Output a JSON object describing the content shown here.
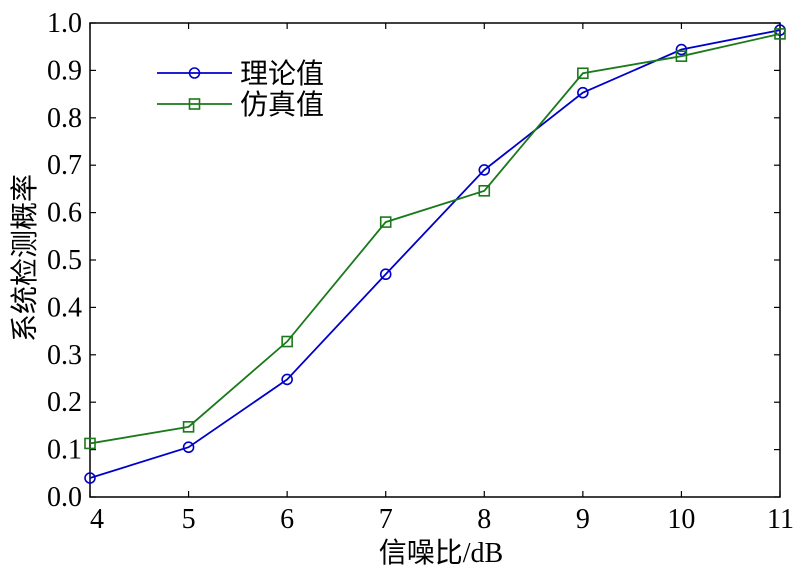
{
  "chart_data": {
    "type": "line",
    "title": "",
    "xlabel": "信噪比/dB",
    "ylabel": "系统检测概率",
    "xlim": [
      4,
      11
    ],
    "ylim": [
      0.0,
      1.0
    ],
    "x": [
      4,
      5,
      6,
      7,
      8,
      9,
      10,
      11
    ],
    "x_ticks": [
      "4",
      "5",
      "6",
      "7",
      "8",
      "9",
      "10",
      "11"
    ],
    "y_ticks": [
      "0.0",
      "0.1",
      "0.2",
      "0.3",
      "0.4",
      "0.5",
      "0.6",
      "0.7",
      "0.8",
      "0.9",
      "1.0"
    ],
    "grid": false,
    "legend_position": "top-left",
    "series": [
      {
        "name": "理论值",
        "color": "#0000cc",
        "marker": "circle",
        "values": [
          0.04,
          0.105,
          0.248,
          0.47,
          0.69,
          0.853,
          0.944,
          0.985
        ]
      },
      {
        "name": "仿真值",
        "color": "#1a7a1a",
        "marker": "square",
        "values": [
          0.113,
          0.148,
          0.328,
          0.58,
          0.646,
          0.894,
          0.93,
          0.977
        ]
      }
    ]
  }
}
